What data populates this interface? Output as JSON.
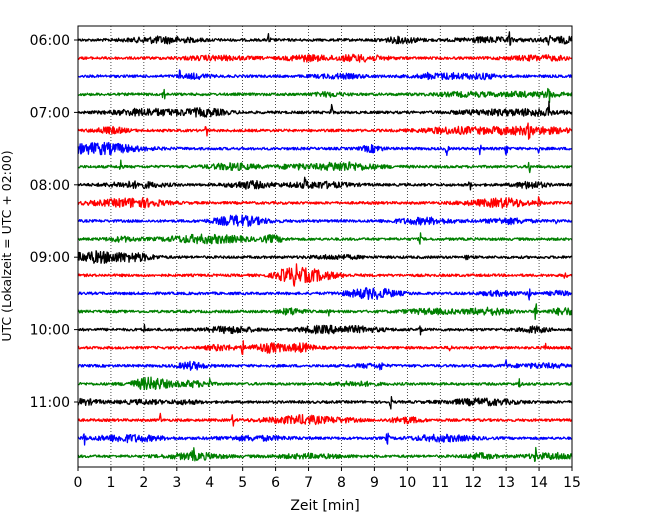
{
  "chart_data": {
    "type": "line",
    "title": "",
    "xlabel": "Zeit  [min]",
    "ylabel": "UTC (Lokalzeit = UTC + 02:00)",
    "xlim": [
      0,
      15
    ],
    "x_ticks": [
      "0",
      "1",
      "2",
      "3",
      "4",
      "5",
      "6",
      "7",
      "8",
      "9",
      "10",
      "11",
      "12",
      "13",
      "14",
      "15"
    ],
    "y_ticks": [
      "06:00",
      "07:00",
      "08:00",
      "09:00",
      "10:00",
      "11:00"
    ],
    "grid_x": true,
    "row_start": "06:00",
    "row_interval_min": 15,
    "colors": [
      "#000000",
      "#ff0000",
      "#0000ff",
      "#008000"
    ],
    "traces": [
      {
        "start": "06:00",
        "color": "#000000",
        "events": [
          [
            5.8,
            8
          ],
          [
            13.1,
            8
          ],
          [
            14.3,
            4
          ]
        ]
      },
      {
        "start": "06:15",
        "color": "#ff0000",
        "events": []
      },
      {
        "start": "06:30",
        "color": "#0000ff",
        "events": [
          [
            3.1,
            6
          ],
          [
            10.6,
            3
          ]
        ]
      },
      {
        "start": "06:45",
        "color": "#008000",
        "events": [
          [
            2.6,
            8
          ],
          [
            14.3,
            6
          ]
        ]
      },
      {
        "start": "07:00",
        "color": "#000000",
        "events": [
          [
            7.7,
            8
          ],
          [
            14.3,
            8
          ]
        ]
      },
      {
        "start": "07:15",
        "color": "#ff0000",
        "events": [
          [
            3.9,
            7
          ],
          [
            13.7,
            7
          ]
        ]
      },
      {
        "start": "07:30",
        "color": "#0000ff",
        "events": [
          [
            11.2,
            7
          ],
          [
            12.2,
            6
          ],
          [
            13.0,
            8
          ],
          [
            14.0,
            4
          ]
        ]
      },
      {
        "start": "07:45",
        "color": "#008000",
        "events": [
          [
            1.3,
            9
          ],
          [
            13.7,
            7
          ]
        ]
      },
      {
        "start": "08:00",
        "color": "#000000",
        "events": [
          [
            6.9,
            6
          ],
          [
            11.9,
            5
          ]
        ]
      },
      {
        "start": "08:15",
        "color": "#ff0000",
        "events": [
          [
            14.0,
            6
          ]
        ]
      },
      {
        "start": "08:30",
        "color": "#0000ff",
        "events": [
          [
            14.5,
            5
          ]
        ]
      },
      {
        "start": "08:45",
        "color": "#008000",
        "events": [
          [
            10.4,
            5
          ]
        ]
      },
      {
        "start": "09:00",
        "color": "#000000",
        "events": [
          [
            11.8,
            5
          ]
        ]
      },
      {
        "start": "09:15",
        "color": "#ff0000",
        "events": [
          [
            6.6,
            8
          ],
          [
            14.8,
            6
          ]
        ]
      },
      {
        "start": "09:30",
        "color": "#0000ff",
        "events": [
          [
            13.7,
            7
          ]
        ]
      },
      {
        "start": "09:45",
        "color": "#008000",
        "events": [
          [
            7.6,
            6
          ],
          [
            13.9,
            9
          ]
        ]
      },
      {
        "start": "10:00",
        "color": "#000000",
        "events": [
          [
            2.0,
            6
          ],
          [
            10.4,
            7
          ]
        ]
      },
      {
        "start": "10:15",
        "color": "#ff0000",
        "events": [
          [
            5.0,
            6
          ],
          [
            11.3,
            6
          ],
          [
            14.2,
            6
          ]
        ]
      },
      {
        "start": "10:30",
        "color": "#0000ff",
        "events": [
          [
            9.2,
            7
          ],
          [
            13.0,
            5
          ]
        ]
      },
      {
        "start": "10:45",
        "color": "#008000",
        "events": [
          [
            4.0,
            6
          ],
          [
            13.4,
            6
          ]
        ]
      },
      {
        "start": "11:00",
        "color": "#000000",
        "events": [
          [
            9.5,
            6
          ]
        ]
      },
      {
        "start": "11:15",
        "color": "#ff0000",
        "events": [
          [
            2.5,
            6
          ],
          [
            4.7,
            6
          ]
        ]
      },
      {
        "start": "11:30",
        "color": "#0000ff",
        "events": [
          [
            0.2,
            6
          ],
          [
            9.4,
            8
          ]
        ]
      },
      {
        "start": "11:45",
        "color": "#008000",
        "events": [
          [
            3.5,
            6
          ],
          [
            13.9,
            7
          ]
        ]
      }
    ]
  }
}
